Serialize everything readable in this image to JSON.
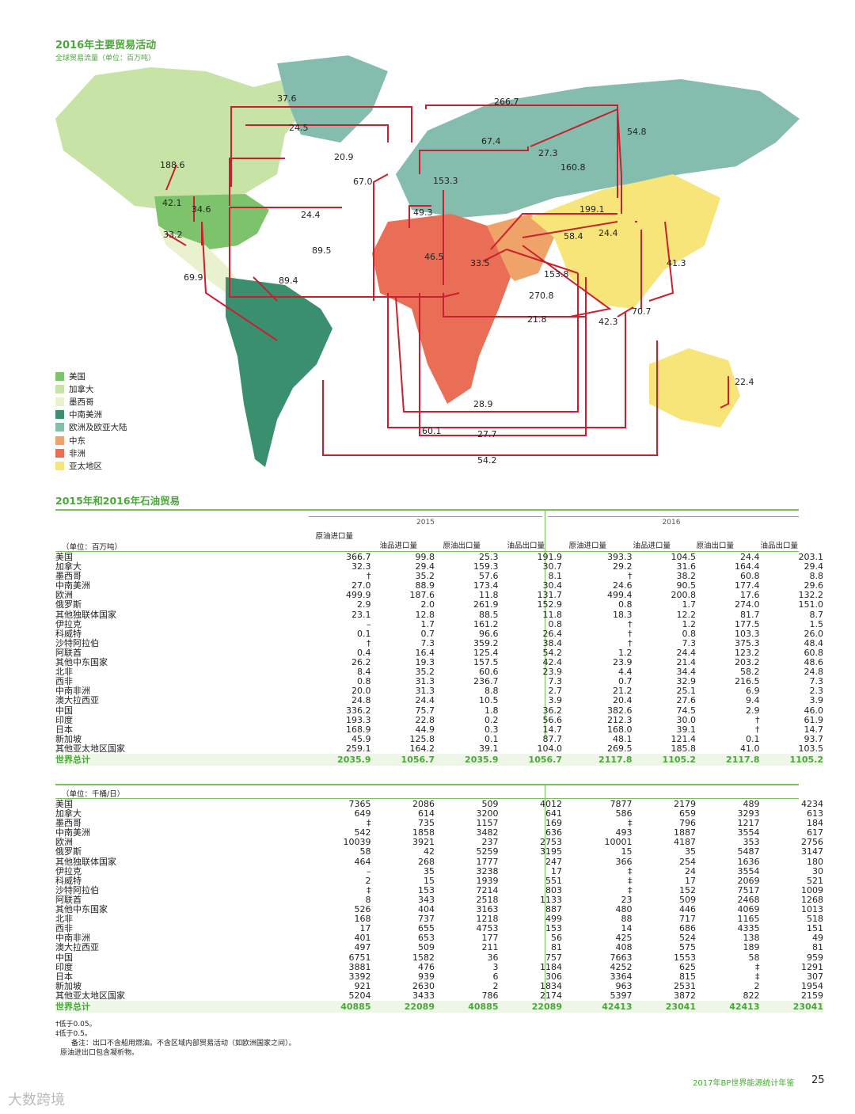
{
  "map": {
    "title": "2016年主要贸易活动",
    "subtitle": "全球贸易流量（单位：百万吨）",
    "legend": [
      {
        "label": "美国",
        "color": "#7dc36b"
      },
      {
        "label": "加拿大",
        "color": "#c7e3a6"
      },
      {
        "label": "墨西哥",
        "color": "#e9f1cf"
      },
      {
        "label": "中南美洲",
        "color": "#3a8f6e"
      },
      {
        "label": "欧洲及欧亚大陆",
        "color": "#84bcae"
      },
      {
        "label": "中东",
        "color": "#f0a368"
      },
      {
        "label": "非洲",
        "color": "#ea6d55"
      },
      {
        "label": "亚太地区",
        "color": "#f7e57a"
      }
    ],
    "flow_labels": [
      "37.6",
      "266.7",
      "24.5",
      "54.8",
      "67.4",
      "20.9",
      "27.3",
      "188.6",
      "160.8",
      "67.0",
      "153.3",
      "42.1",
      "34.6",
      "199.1",
      "49.3",
      "24.4",
      "58.4",
      "24.4",
      "33.2",
      "41.3",
      "89.5",
      "46.5",
      "33.5",
      "153.8",
      "69.9",
      "89.4",
      "270.8",
      "21.8",
      "42.3",
      "70.7",
      "22.4",
      "28.9",
      "60.1",
      "27.7",
      "54.2"
    ]
  },
  "chart_data": [
    {
      "type": "table",
      "title": "2015年和2016年石油贸易",
      "unit": "（单位：百万吨）",
      "year_headers": [
        "2015",
        "2016"
      ],
      "columns": [
        "原油进口量",
        "油品进口量",
        "原油出口量",
        "油品出口量",
        "原油进口量",
        "油品进口量",
        "原油出口量",
        "油品出口量"
      ],
      "rows": [
        {
          "name": "美国",
          "values": [
            "366.7",
            "99.8",
            "25.3",
            "191.9",
            "393.3",
            "104.5",
            "24.4",
            "203.1"
          ]
        },
        {
          "name": "加拿大",
          "values": [
            "32.3",
            "29.4",
            "159.3",
            "30.7",
            "29.2",
            "31.6",
            "164.4",
            "29.4"
          ]
        },
        {
          "name": "墨西哥",
          "values": [
            "†",
            "35.2",
            "57.6",
            "8.1",
            "†",
            "38.2",
            "60.8",
            "8.8"
          ]
        },
        {
          "name": "中南美洲",
          "values": [
            "27.0",
            "88.9",
            "173.4",
            "30.4",
            "24.6",
            "90.5",
            "177.4",
            "29.6"
          ]
        },
        {
          "name": "欧洲",
          "values": [
            "499.9",
            "187.6",
            "11.8",
            "131.7",
            "499.4",
            "200.8",
            "17.6",
            "132.2"
          ]
        },
        {
          "name": "俄罗斯",
          "values": [
            "2.9",
            "2.0",
            "261.9",
            "152.9",
            "0.8",
            "1.7",
            "274.0",
            "151.0"
          ]
        },
        {
          "name": "其他独联体国家",
          "values": [
            "23.1",
            "12.8",
            "88.5",
            "11.8",
            "18.3",
            "12.2",
            "81.7",
            "8.7"
          ]
        },
        {
          "name": "伊拉克",
          "values": [
            "–",
            "1.7",
            "161.2",
            "0.8",
            "†",
            "1.2",
            "177.5",
            "1.5"
          ]
        },
        {
          "name": "科威特",
          "values": [
            "0.1",
            "0.7",
            "96.6",
            "26.4",
            "†",
            "0.8",
            "103.3",
            "26.0"
          ]
        },
        {
          "name": "沙特阿拉伯",
          "values": [
            "†",
            "7.3",
            "359.2",
            "38.4",
            "†",
            "7.3",
            "375.3",
            "48.4"
          ]
        },
        {
          "name": "阿联酋",
          "values": [
            "0.4",
            "16.4",
            "125.4",
            "54.2",
            "1.2",
            "24.4",
            "123.2",
            "60.8"
          ]
        },
        {
          "name": "其他中东国家",
          "values": [
            "26.2",
            "19.3",
            "157.5",
            "42.4",
            "23.9",
            "21.4",
            "203.2",
            "48.6"
          ]
        },
        {
          "name": "北非",
          "values": [
            "8.4",
            "35.2",
            "60.6",
            "23.9",
            "4.4",
            "34.4",
            "58.2",
            "24.8"
          ]
        },
        {
          "name": "西非",
          "values": [
            "0.8",
            "31.3",
            "236.7",
            "7.3",
            "0.7",
            "32.9",
            "216.5",
            "7.3"
          ]
        },
        {
          "name": "中南非洲",
          "values": [
            "20.0",
            "31.3",
            "8.8",
            "2.7",
            "21.2",
            "25.1",
            "6.9",
            "2.3"
          ]
        },
        {
          "name": "澳大拉西亚",
          "values": [
            "24.8",
            "24.4",
            "10.5",
            "3.9",
            "20.4",
            "27.6",
            "9.4",
            "3.9"
          ]
        },
        {
          "name": "中国",
          "values": [
            "336.2",
            "75.7",
            "1.8",
            "36.2",
            "382.6",
            "74.5",
            "2.9",
            "46.0"
          ]
        },
        {
          "name": "印度",
          "values": [
            "193.3",
            "22.8",
            "0.2",
            "56.6",
            "212.3",
            "30.0",
            "†",
            "61.9"
          ]
        },
        {
          "name": "日本",
          "values": [
            "168.9",
            "44.9",
            "0.3",
            "14.7",
            "168.0",
            "39.1",
            "†",
            "14.7"
          ]
        },
        {
          "name": "新加坡",
          "values": [
            "45.9",
            "125.8",
            "0.1",
            "87.7",
            "48.1",
            "121.4",
            "0.1",
            "93.7"
          ]
        },
        {
          "name": "其他亚太地区国家",
          "values": [
            "259.1",
            "164.2",
            "39.1",
            "104.0",
            "269.5",
            "185.8",
            "41.0",
            "103.5"
          ]
        }
      ],
      "total": {
        "name": "世界总计",
        "values": [
          "2035.9",
          "1056.7",
          "2035.9",
          "1056.7",
          "2117.8",
          "1105.2",
          "2117.8",
          "1105.2"
        ]
      }
    },
    {
      "type": "table",
      "unit": "（单位：千桶/日）",
      "rows": [
        {
          "name": "美国",
          "values": [
            "7365",
            "2086",
            "509",
            "4012",
            "7877",
            "2179",
            "489",
            "4234"
          ]
        },
        {
          "name": "加拿大",
          "values": [
            "649",
            "614",
            "3200",
            "641",
            "586",
            "659",
            "3293",
            "613"
          ]
        },
        {
          "name": "墨西哥",
          "values": [
            "‡",
            "735",
            "1157",
            "169",
            "‡",
            "796",
            "1217",
            "184"
          ]
        },
        {
          "name": "中南美洲",
          "values": [
            "542",
            "1858",
            "3482",
            "636",
            "493",
            "1887",
            "3554",
            "617"
          ]
        },
        {
          "name": "欧洲",
          "values": [
            "10039",
            "3921",
            "237",
            "2753",
            "10001",
            "4187",
            "353",
            "2756"
          ]
        },
        {
          "name": "俄罗斯",
          "values": [
            "58",
            "42",
            "5259",
            "3195",
            "15",
            "35",
            "5487",
            "3147"
          ]
        },
        {
          "name": "其他独联体国家",
          "values": [
            "464",
            "268",
            "1777",
            "247",
            "366",
            "254",
            "1636",
            "180"
          ]
        },
        {
          "name": "伊拉克",
          "values": [
            "–",
            "35",
            "3238",
            "17",
            "‡",
            "24",
            "3554",
            "30"
          ]
        },
        {
          "name": "科威特",
          "values": [
            "2",
            "15",
            "1939",
            "551",
            "‡",
            "17",
            "2069",
            "521"
          ]
        },
        {
          "name": "沙特阿拉伯",
          "values": [
            "‡",
            "153",
            "7214",
            "803",
            "‡",
            "152",
            "7517",
            "1009"
          ]
        },
        {
          "name": "阿联酋",
          "values": [
            "8",
            "343",
            "2518",
            "1133",
            "23",
            "509",
            "2468",
            "1268"
          ]
        },
        {
          "name": "其他中东国家",
          "values": [
            "526",
            "404",
            "3163",
            "887",
            "480",
            "446",
            "4069",
            "1013"
          ]
        },
        {
          "name": "北非",
          "values": [
            "168",
            "737",
            "1218",
            "499",
            "88",
            "717",
            "1165",
            "518"
          ]
        },
        {
          "name": "西非",
          "values": [
            "17",
            "655",
            "4753",
            "153",
            "14",
            "686",
            "4335",
            "151"
          ]
        },
        {
          "name": "中南非洲",
          "values": [
            "401",
            "653",
            "177",
            "56",
            "425",
            "524",
            "138",
            "49"
          ]
        },
        {
          "name": "澳大拉西亚",
          "values": [
            "497",
            "509",
            "211",
            "81",
            "408",
            "575",
            "189",
            "81"
          ]
        },
        {
          "name": "中国",
          "values": [
            "6751",
            "1582",
            "36",
            "757",
            "7663",
            "1553",
            "58",
            "959"
          ]
        },
        {
          "name": "印度",
          "values": [
            "3881",
            "476",
            "3",
            "1184",
            "4252",
            "625",
            "‡",
            "1291"
          ]
        },
        {
          "name": "日本",
          "values": [
            "3392",
            "939",
            "6",
            "306",
            "3364",
            "815",
            "‡",
            "307"
          ]
        },
        {
          "name": "新加坡",
          "values": [
            "921",
            "2630",
            "2",
            "1834",
            "963",
            "2531",
            "2",
            "1954"
          ]
        },
        {
          "name": "其他亚太地区国家",
          "values": [
            "5204",
            "3433",
            "786",
            "2174",
            "5397",
            "3872",
            "822",
            "2159"
          ]
        }
      ],
      "total": {
        "name": "世界总计",
        "values": [
          "40885",
          "22089",
          "40885",
          "22089",
          "42413",
          "23041",
          "42413",
          "23041"
        ]
      }
    }
  ],
  "notes": {
    "dagger": "†低于0.05。",
    "ddagger": "‡低于0.5。",
    "remark": "备注：出口不含船用燃油。不含区域内部贸易活动（如欧洲国家之间）。",
    "remark2": "原油进出口包含凝析物。"
  },
  "footer": {
    "book": "2017年BP世界能源统计年鉴",
    "page": "25",
    "watermark": "大数跨境"
  }
}
